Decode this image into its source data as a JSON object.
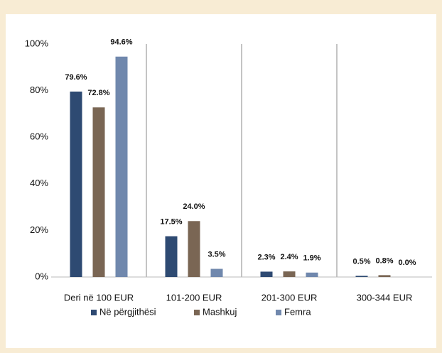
{
  "chart_data": {
    "type": "bar",
    "categories": [
      "Deri në 100 EUR",
      "101-200 EUR",
      "201-300 EUR",
      "300-344 EUR"
    ],
    "series": [
      {
        "name": "Në përgjithësi",
        "color": "#2e4a72",
        "values": [
          79.6,
          17.5,
          2.3,
          0.5
        ],
        "value_labels": [
          "79.6%",
          "17.5%",
          "2.3%",
          "0.5%"
        ]
      },
      {
        "name": "Mashkuj",
        "color": "#7a6654",
        "values": [
          72.8,
          24.0,
          2.4,
          0.8
        ],
        "value_labels": [
          "72.8%",
          "24.0%",
          "2.4%",
          "0.8%"
        ]
      },
      {
        "name": "Femra",
        "color": "#7088ad",
        "values": [
          94.6,
          3.5,
          1.9,
          0.0
        ],
        "value_labels": [
          "94.6%",
          "3.5%",
          "1.9%",
          "0.0%"
        ]
      }
    ],
    "ylim": [
      0,
      100
    ],
    "yticks": [
      {
        "value": 0,
        "label": "0%"
      },
      {
        "value": 20,
        "label": "20%"
      },
      {
        "value": 40,
        "label": "40%"
      },
      {
        "value": 60,
        "label": "60%"
      },
      {
        "value": 80,
        "label": "80%"
      },
      {
        "value": 100,
        "label": "100%"
      }
    ],
    "grid": false,
    "legend": "bottom"
  }
}
